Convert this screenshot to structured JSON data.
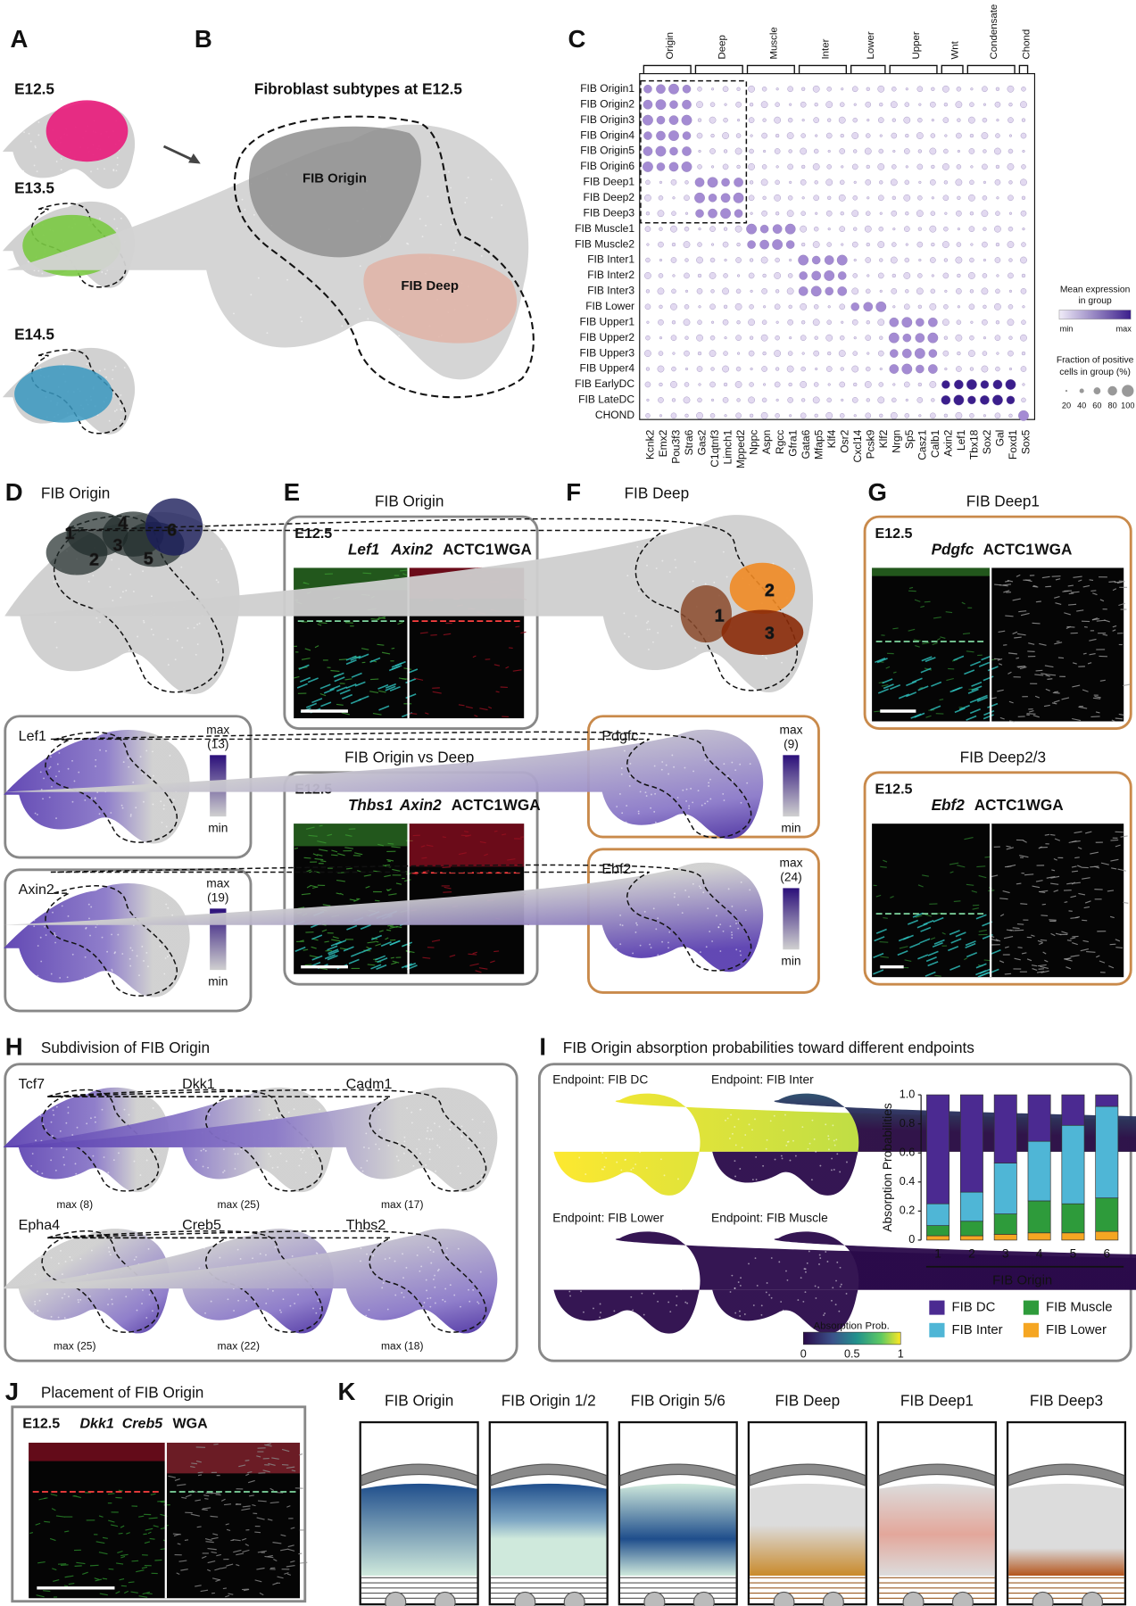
{
  "A": {
    "label": "A",
    "stages": [
      "E12.5",
      "E13.5",
      "E14.5"
    ]
  },
  "B": {
    "label": "B",
    "title": "Fibroblast subtypes at E12.5",
    "regions": [
      "FIB Origin",
      "FIB Deep"
    ]
  },
  "C": {
    "label": "C",
    "groups": [
      "Origin",
      "Deep",
      "Muscle",
      "Inter",
      "Lower",
      "Upper",
      "Wnt",
      "Condensate",
      "Chond"
    ],
    "rows": [
      "FIB Origin1",
      "FIB Origin2",
      "FIB Origin3",
      "FIB Origin4",
      "FIB Origin5",
      "FIB Origin6",
      "FIB Deep1",
      "FIB Deep2",
      "FIB Deep3",
      "FIB Muscle1",
      "FIB Muscle2",
      "FIB Inter1",
      "FIB Inter2",
      "FIB Inter3",
      "FIB Lower",
      "FIB Upper1",
      "FIB Upper2",
      "FIB Upper3",
      "FIB Upper4",
      "FIB EarlyDC",
      "FIB LateDC",
      "CHOND"
    ],
    "genes": [
      "Kcnk2",
      "Emx2",
      "Pou3f3",
      "Stra6",
      "Gas2",
      "C1qtnf3",
      "Limch1",
      "Mpped2",
      "Nppc",
      "Aspn",
      "Rgcc",
      "Gfra1",
      "Gata6",
      "Mfap5",
      "Klf4",
      "Osr2",
      "Cxcl14",
      "Pcsk9",
      "Klf2",
      "Nrgn",
      "Sp5",
      "Casz1",
      "Calb1",
      "Axin2",
      "Lef1",
      "Tbx18",
      "Sox2",
      "Gal",
      "Foxd1",
      "Sox5"
    ],
    "legend": {
      "expression_title": [
        "Mean expression",
        "in group"
      ],
      "min": "min",
      "max": "max",
      "fraction_title": [
        "Fraction of positive",
        "cells in group (%)"
      ],
      "fraction_ticks": [
        20,
        40,
        60,
        80,
        100
      ]
    }
  },
  "D": {
    "label": "D",
    "title": "FIB Origin",
    "clusters": [
      "1",
      "2",
      "3",
      "4",
      "5",
      "6"
    ],
    "genes": [
      {
        "name": "Lef1",
        "max": "max",
        "max_value": "(13)",
        "min": "min"
      },
      {
        "name": "Axin2",
        "max": "max",
        "max_value": "(19)",
        "min": "min"
      }
    ]
  },
  "E": {
    "label": "E",
    "images": [
      {
        "title": "FIB Origin",
        "stage": "E12.5",
        "stains": [
          "Lef1",
          "Axin2",
          "ACTC1",
          "WGA"
        ]
      },
      {
        "title": "FIB Origin vs Deep",
        "stage": "E12.5",
        "stains": [
          "Thbs1",
          "Axin2",
          "ACTC1",
          "WGA"
        ]
      }
    ]
  },
  "F": {
    "label": "F",
    "title": "FIB Deep",
    "clusters": [
      "1",
      "2",
      "3"
    ],
    "genes": [
      {
        "name": "Pdgfc",
        "max": "max",
        "max_value": "(9)",
        "min": "min"
      },
      {
        "name": "Ebf2",
        "max": "max",
        "max_value": "(24)",
        "min": "min"
      }
    ]
  },
  "G": {
    "label": "G",
    "images": [
      {
        "title": "FIB Deep1",
        "stage": "E12.5",
        "stains": [
          "Pdgfc",
          "ACTC1",
          "WGA"
        ]
      },
      {
        "title": "FIB Deep2/3",
        "stage": "E12.5",
        "stains": [
          "Ebf2",
          "ACTC1",
          "WGA"
        ]
      }
    ]
  },
  "H": {
    "label": "H",
    "title": "Subdivision of FIB Origin",
    "genes": [
      {
        "name": "Tcf7",
        "max": "max (8)"
      },
      {
        "name": "Dkk1",
        "max": "max (25)"
      },
      {
        "name": "Cadm1",
        "max": "max (17)"
      },
      {
        "name": "Epha4",
        "max": "max (25)"
      },
      {
        "name": "Creb5",
        "max": "max (22)"
      },
      {
        "name": "Thbs2",
        "max": "max (18)"
      }
    ]
  },
  "I": {
    "label": "I",
    "title": "FIB Origin absorption probabilities toward different endpoints",
    "endpoints": [
      "Endpoint: FIB DC",
      "Endpoint: FIB Inter",
      "Endpoint: FIB Lower",
      "Endpoint: FIB Muscle"
    ],
    "colorbar_title": "Absorption Prob.",
    "colorbar_ticks": [
      0,
      0.5,
      1
    ]
  },
  "J": {
    "label": "J",
    "title": "Placement of FIB Origin",
    "stage": "E12.5",
    "stains": [
      "Dkk1",
      "Creb5",
      "WGA"
    ]
  },
  "K": {
    "label": "K",
    "titles": [
      "FIB Origin",
      "FIB Origin 1/2",
      "FIB Origin 5/6",
      "FIB Deep",
      "FIB Deep1",
      "FIB Deep3"
    ]
  },
  "chart_data": {
    "type": "bar",
    "stacked": true,
    "categories": [
      "1",
      "2",
      "3",
      "4",
      "5",
      "6"
    ],
    "xlabel": "FIB Origin",
    "ylabel": "Absorption Probabilities",
    "ylim": [
      0,
      1
    ],
    "yticks": [
      0,
      0.2,
      0.4,
      0.6,
      0.8,
      {
        "value": 1,
        "label": "1.0"
      }
    ],
    "series": [
      {
        "name": "FIB DC",
        "color": "#4b2a91",
        "values": [
          0.75,
          0.67,
          0.47,
          0.32,
          0.21,
          0.08
        ]
      },
      {
        "name": "FIB Inter",
        "color": "#4fb6d6",
        "values": [
          0.15,
          0.2,
          0.35,
          0.41,
          0.54,
          0.63
        ]
      },
      {
        "name": "FIB Muscle",
        "color": "#2e9b3b",
        "values": [
          0.07,
          0.1,
          0.14,
          0.22,
          0.2,
          0.23
        ]
      },
      {
        "name": "FIB Lower",
        "color": "#f5a623",
        "values": [
          0.03,
          0.03,
          0.04,
          0.05,
          0.05,
          0.06
        ]
      }
    ]
  }
}
